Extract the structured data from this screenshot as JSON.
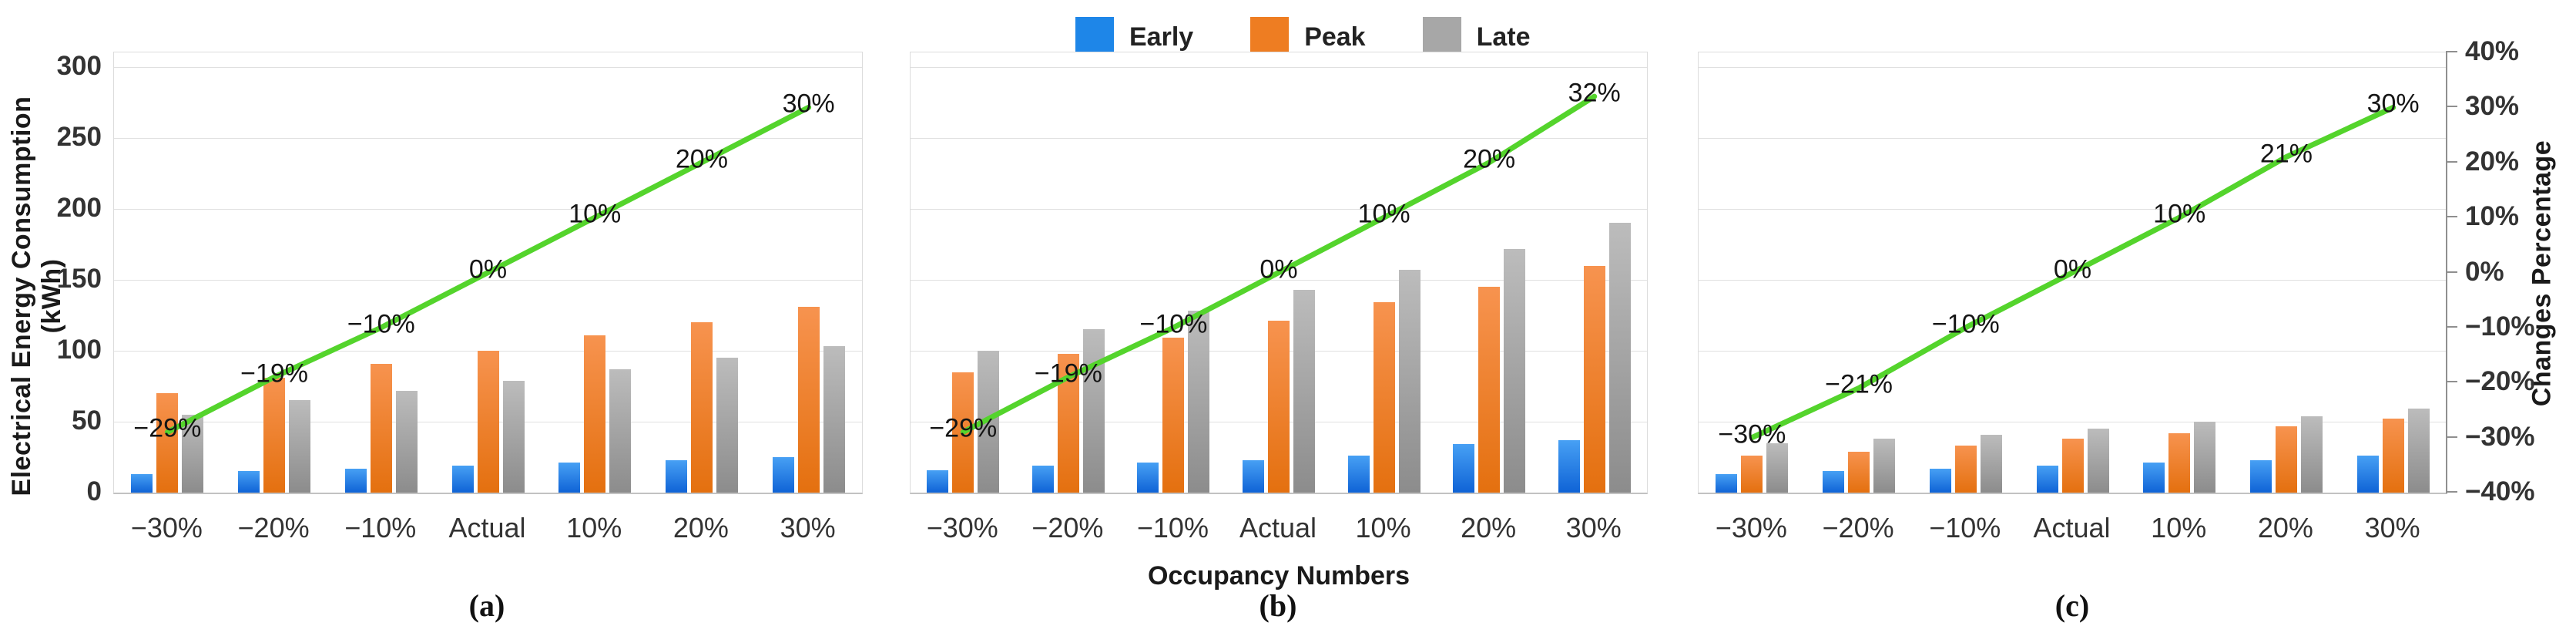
{
  "legend": {
    "items": [
      {
        "label": "Early",
        "color": "#1E86E8"
      },
      {
        "label": "Peak",
        "color": "#EE7D22"
      },
      {
        "label": "Late",
        "color": "#A7A7A7"
      }
    ]
  },
  "left_axis": {
    "title": "Electrical Energy Consumption (kWh)",
    "ticks": [
      300,
      250,
      200,
      150,
      100,
      50,
      0
    ],
    "max": 300,
    "min": 0
  },
  "right_axis": {
    "title": "Changes Percentage",
    "ticks": [
      "40%",
      "30%",
      "20%",
      "10%",
      "0%",
      "−10%",
      "−20%",
      "−30%",
      "−40%"
    ],
    "max_pct": 40,
    "min_pct": -40
  },
  "x_axis": {
    "title": "Occupancy Numbers",
    "categories": [
      "−30%",
      "−20%",
      "−10%",
      "Actual",
      "10%",
      "20%",
      "30%"
    ]
  },
  "panels": [
    {
      "label": "(a)"
    },
    {
      "label": "(b)"
    },
    {
      "label": "(c)"
    }
  ],
  "colors": {
    "early": "#1E86E8",
    "peak": "#EE7D22",
    "late": "#A7A7A7",
    "changes_line": "#54D42C",
    "gridline": "#E0E0E0"
  },
  "chart_data": [
    {
      "panel": "(a)",
      "type": "bar+line",
      "categories": [
        "−30%",
        "−20%",
        "−10%",
        "Actual",
        "10%",
        "20%",
        "30%"
      ],
      "ylabel": "Electrical Energy Consumption (kWh)",
      "ylim": [
        0,
        300
      ],
      "y2label": "Changes Percentage",
      "y2lim": [
        -40,
        40
      ],
      "grid": true,
      "legend_position": "top-center",
      "series": [
        {
          "name": "Early",
          "values": [
            13,
            15,
            17,
            19,
            21,
            23,
            25
          ]
        },
        {
          "name": "Peak",
          "values": [
            70,
            81,
            91,
            100,
            111,
            120,
            131
          ]
        },
        {
          "name": "Late",
          "values": [
            55,
            65,
            72,
            79,
            87,
            95,
            103
          ]
        }
      ],
      "line": {
        "name": "Changes Percentage",
        "values_pct": [
          -29,
          -19,
          -10,
          0,
          10,
          20,
          30
        ],
        "labels": [
          "−29%",
          "−19%",
          "−10%",
          "0%",
          "10%",
          "20%",
          "30%"
        ]
      }
    },
    {
      "panel": "(b)",
      "type": "bar+line",
      "categories": [
        "−30%",
        "−20%",
        "−10%",
        "Actual",
        "10%",
        "20%",
        "30%"
      ],
      "ylabel": "Electrical Energy Consumption (kWh)",
      "ylim": [
        0,
        300
      ],
      "y2label": "Changes Percentage",
      "y2lim": [
        -40,
        40
      ],
      "grid": true,
      "series": [
        {
          "name": "Early",
          "values": [
            16,
            19,
            21,
            23,
            26,
            34,
            37
          ]
        },
        {
          "name": "Peak",
          "values": [
            85,
            98,
            109,
            121,
            134,
            145,
            160
          ]
        },
        {
          "name": "Late",
          "values": [
            100,
            115,
            128,
            143,
            157,
            172,
            190
          ]
        }
      ],
      "line": {
        "name": "Changes Percentage",
        "values_pct": [
          -29,
          -19,
          -10,
          0,
          10,
          20,
          32
        ],
        "labels": [
          "−29%",
          "−19%",
          "−10%",
          "0%",
          "10%",
          "20%",
          "32%"
        ]
      }
    },
    {
      "panel": "(c)",
      "type": "bar+line",
      "categories": [
        "−30%",
        "−20%",
        "−10%",
        "Actual",
        "10%",
        "20%",
        "30%"
      ],
      "ylabel": "Electrical Energy Consumption (kWh)",
      "ylim": [
        0,
        300
      ],
      "y2label": "Changes Percentage",
      "y2lim": [
        -40,
        40
      ],
      "grid": true,
      "series": [
        {
          "name": "Early",
          "values": [
            13,
            15,
            17,
            19,
            21,
            23,
            26
          ]
        },
        {
          "name": "Peak",
          "values": [
            26,
            29,
            33,
            38,
            42,
            47,
            52
          ]
        },
        {
          "name": "Late",
          "values": [
            35,
            38,
            41,
            45,
            50,
            54,
            59
          ]
        }
      ],
      "line": {
        "name": "Changes Percentage",
        "values_pct": [
          -30,
          -21,
          -10,
          0,
          10,
          21,
          30
        ],
        "labels": [
          "−30%",
          "−21%",
          "−10%",
          "0%",
          "10%",
          "21%",
          "30%"
        ]
      }
    }
  ]
}
